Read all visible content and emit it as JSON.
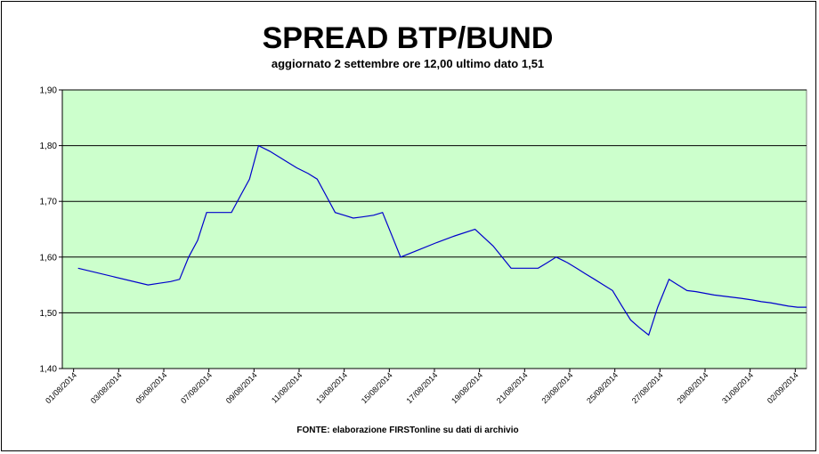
{
  "chart_data": {
    "type": "line",
    "title": "SPREAD BTP/BUND",
    "subtitle": "aggiornato 2 settembre ore 12,00 ultimo dato 1,51",
    "source": "FONTE: elaborazione FIRSTonline su dati di archivio",
    "ylim": [
      1.4,
      1.9
    ],
    "y_ticks": [
      "1,40",
      "1,50",
      "1,60",
      "1,70",
      "1,80",
      "1,90"
    ],
    "y_tick_values": [
      1.4,
      1.5,
      1.6,
      1.7,
      1.8,
      1.9
    ],
    "x_tick_labels": [
      "01/08/2014",
      "03/08/2014",
      "05/08/2014",
      "07/08/2014",
      "09/08/2014",
      "11/08/2014",
      "13/08/2014",
      "15/08/2014",
      "17/08/2014",
      "19/08/2014",
      "21/08/2014",
      "23/08/2014",
      "25/08/2014",
      "27/08/2014",
      "29/08/2014",
      "31/08/2014",
      "02/09/2014"
    ],
    "x_tick_days": [
      1,
      3,
      5,
      7,
      9,
      11,
      13,
      15,
      17,
      19,
      21,
      23,
      25,
      27,
      29,
      31,
      33
    ],
    "x_range_days": [
      0.5,
      33.5
    ],
    "grid": true,
    "series": [
      {
        "color": "#0000cc",
        "x_days": [
          1.2,
          4.3,
          4.8,
          5.3,
          5.7,
          6.1,
          6.5,
          6.9,
          7.3,
          7.7,
          8.0,
          8.4,
          8.8,
          9.2,
          9.7,
          10.1,
          10.5,
          10.9,
          11.4,
          11.8,
          12.2,
          12.6,
          13.0,
          13.4,
          13.8,
          14.3,
          14.7,
          15.1,
          15.5,
          16.3,
          17.1,
          17.9,
          18.8,
          19.6,
          20.0,
          20.4,
          20.8,
          21.2,
          21.6,
          22.0,
          22.4,
          22.9,
          23.3,
          23.7,
          24.1,
          24.5,
          24.9,
          25.3,
          25.7,
          26.1,
          26.5,
          26.9,
          27.4,
          27.8,
          28.2,
          28.6,
          29.0,
          29.4,
          29.8,
          30.2,
          30.6,
          31.1,
          31.5,
          31.9,
          32.3,
          32.7,
          33.1,
          33.5
        ],
        "values": [
          1.58,
          1.55,
          1.553,
          1.556,
          1.56,
          1.6,
          1.63,
          1.68,
          1.68,
          1.68,
          1.68,
          1.71,
          1.74,
          1.8,
          1.79,
          1.78,
          1.77,
          1.76,
          1.75,
          1.74,
          1.71,
          1.68,
          1.675,
          1.67,
          1.672,
          1.675,
          1.68,
          1.64,
          1.6,
          1.613,
          1.626,
          1.638,
          1.65,
          1.62,
          1.6,
          1.58,
          1.58,
          1.58,
          1.58,
          1.59,
          1.6,
          1.59,
          1.58,
          1.57,
          1.56,
          1.55,
          1.54,
          1.513,
          1.487,
          1.473,
          1.46,
          1.51,
          1.56,
          1.55,
          1.54,
          1.538,
          1.535,
          1.532,
          1.53,
          1.528,
          1.526,
          1.523,
          1.52,
          1.518,
          1.515,
          1.512,
          1.51,
          1.51
        ]
      }
    ]
  }
}
